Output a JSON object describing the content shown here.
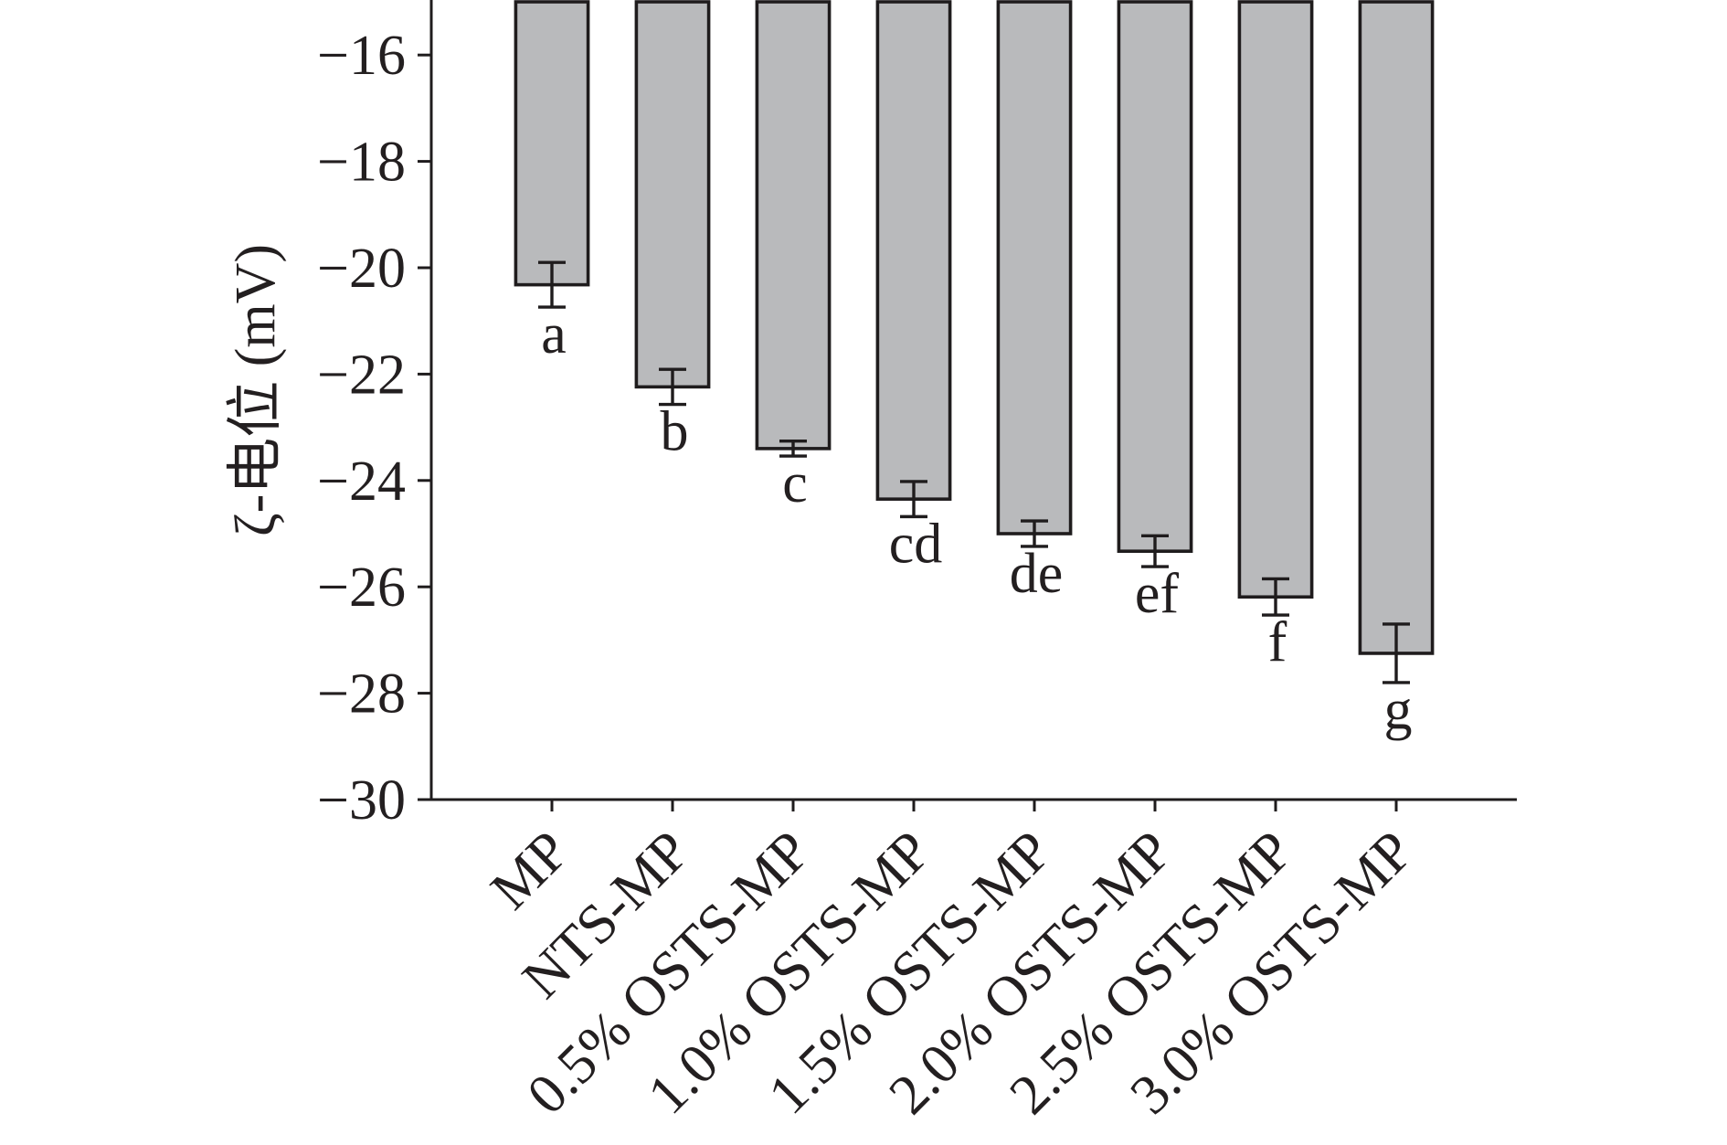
{
  "chart_data": {
    "type": "bar",
    "categories": [
      "MP",
      "NTS-MP",
      "0.5% OSTS-MP",
      "1.0% OSTS-MP",
      "1.5% OSTS-MP",
      "2.0% OSTS-MP",
      "2.5% OSTS-MP",
      "3.0% OSTS-MP"
    ],
    "values": [
      -20.32,
      -22.24,
      -23.4,
      -24.35,
      -25.0,
      -25.33,
      -26.19,
      -27.25
    ],
    "errors": [
      0.42,
      0.33,
      0.14,
      0.33,
      0.24,
      0.29,
      0.34,
      0.55
    ],
    "significance_letters": [
      "a",
      "b",
      "c",
      "cd",
      "de",
      "ef",
      "f",
      "g"
    ],
    "ylabel": "ζ-电位 (mV)",
    "ylim": [
      -30,
      -15
    ],
    "yticks": [
      {
        "value": -16,
        "label": "−16"
      },
      {
        "value": -18,
        "label": "−18"
      },
      {
        "value": -20,
        "label": "−20"
      },
      {
        "value": -22,
        "label": "−22"
      },
      {
        "value": -24,
        "label": "−24"
      },
      {
        "value": -26,
        "label": "−26"
      },
      {
        "value": -28,
        "label": "−28"
      },
      {
        "value": -30,
        "label": "−30"
      }
    ],
    "grid": false,
    "legend": "none",
    "colors": {
      "bar_fill": "#b9babc",
      "bar_edge": "#1f1c1d",
      "axis": "#1f1c1d",
      "text": "#231f20"
    }
  }
}
